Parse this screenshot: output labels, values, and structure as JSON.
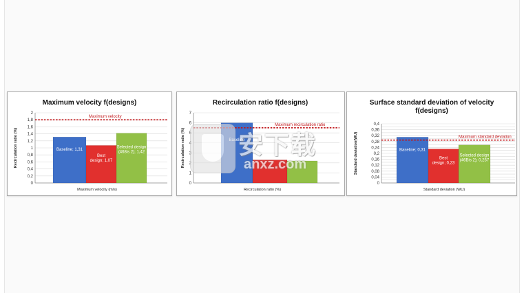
{
  "chart_data": [
    {
      "type": "bar",
      "title": "Maximum velocity f(designs)",
      "xlabel": "Maximum velocity (m/s)",
      "ylabel": "Recirculation ratio (%)",
      "ylim": [
        0,
        2
      ],
      "yticks": [
        "0",
        "0,2",
        "0,4",
        "0,6",
        "0,8",
        "1",
        "1,2",
        "1,4",
        "1,6",
        "1,8",
        "2"
      ],
      "values": [
        1.31,
        1.07,
        1.42
      ],
      "bar_labels": [
        "Baseline; 1,31",
        "Best design; 1,07",
        "Selected design (468is 2); 1,42"
      ],
      "colors": [
        "#3e6fc8",
        "#e1302e",
        "#92c046"
      ],
      "reference": {
        "label": "Maximum velocity",
        "value": 1.8,
        "color": "#c0171b"
      },
      "grid": true
    },
    {
      "type": "bar",
      "title": "Recirculation ratio f(designs)",
      "xlabel": "Recirculation ratio (%)",
      "ylabel": "Recirculation ratio (%)",
      "ylim": [
        0,
        7
      ],
      "yticks": [
        "0",
        "1",
        "2",
        "3",
        "4",
        "5",
        "6",
        "7"
      ],
      "values": [
        6,
        2.3,
        2.2
      ],
      "bar_labels": [
        "Baseline",
        "",
        ""
      ],
      "colors": [
        "#3e6fc8",
        "#e1302e",
        "#92c046"
      ],
      "reference": {
        "label": "Maximum recirculation ratio",
        "value": 5.5,
        "color": "#c0171b"
      },
      "grid": true
    },
    {
      "type": "bar",
      "title": "Surface standard deviation of velocity f(designs)",
      "xlabel": "Standard deviation (WU)",
      "ylabel": "Standard deviation(WU)",
      "ylim": [
        0,
        0.4
      ],
      "yticks": [
        "0",
        "0,02",
        "0,04",
        "0,06",
        "0,08",
        "0,1",
        "0,12",
        "0,14",
        "0,16",
        "0,18",
        "0,2",
        "0,22",
        "0,24",
        "0,26",
        "0,28",
        "0,3",
        "0,32",
        "0,34",
        "0,36",
        "0,38",
        "0,4"
      ],
      "values": [
        0.31,
        0.23,
        0.257
      ],
      "bar_labels": [
        "Baseline; 0,31",
        "Best design; 0,23",
        "Selected design (46Bis 2); 0,257"
      ],
      "colors": [
        "#3e6fc8",
        "#e1302e",
        "#92c046"
      ],
      "reference": {
        "label": "Maximum standard deviation",
        "value": 0.29,
        "color": "#c0171b"
      },
      "grid": true
    }
  ],
  "watermark": {
    "cn": "安下载",
    "en": "anxz.com",
    "icon": "shield-icon"
  }
}
